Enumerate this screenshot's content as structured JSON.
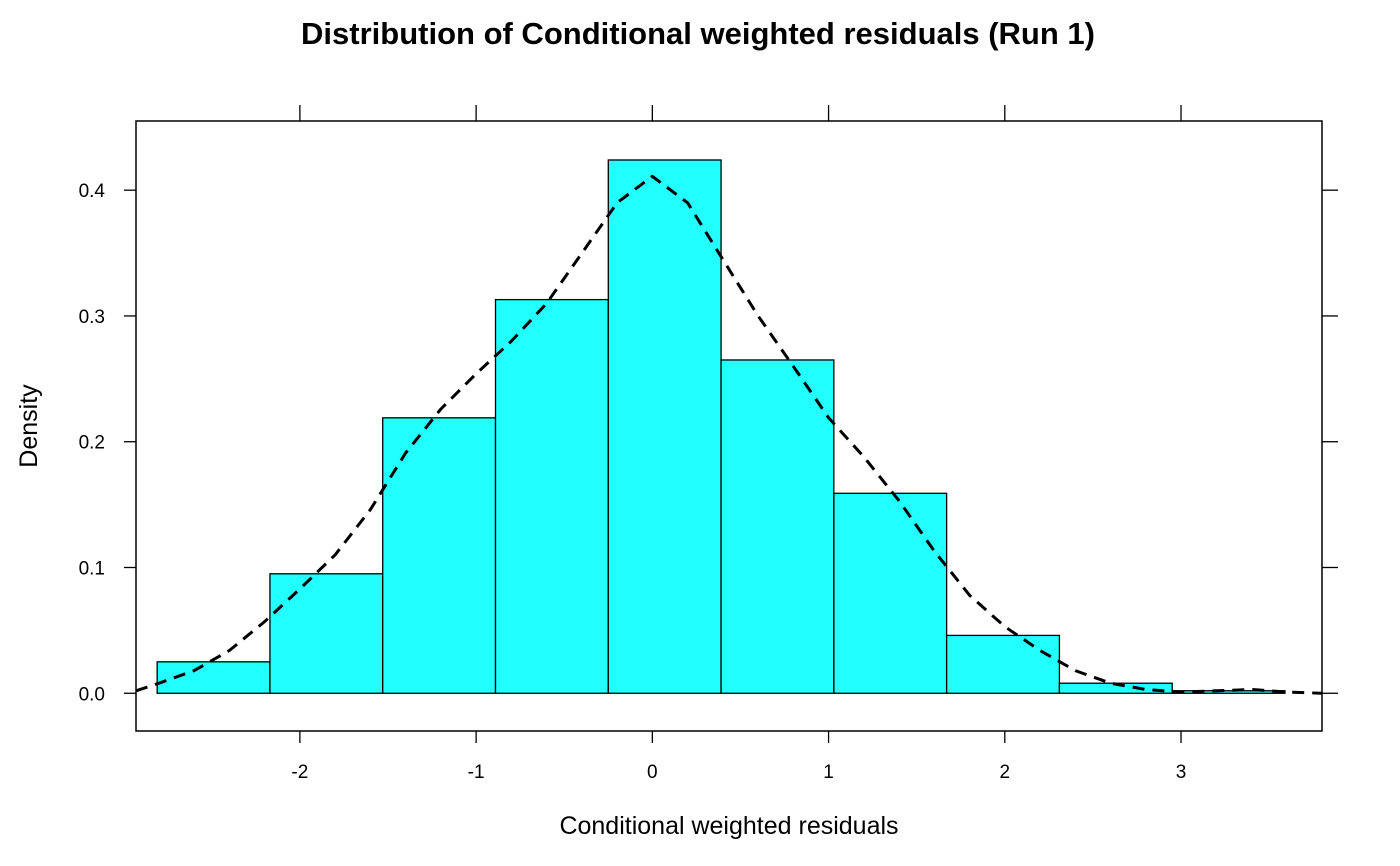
{
  "chart_data": {
    "type": "bar",
    "title": "Distribution of Conditional weighted residuals (Run 1)",
    "xlabel": "Conditional weighted residuals",
    "ylabel": "Density",
    "xlim": [
      -2.93,
      3.8
    ],
    "ylim": [
      -0.03,
      0.455
    ],
    "x_ticks": [
      -2,
      -1,
      0,
      1,
      2,
      3
    ],
    "x_tick_labels": [
      "-2",
      "-1",
      "0",
      "1",
      "2",
      "3"
    ],
    "y_ticks": [
      0.0,
      0.1,
      0.2,
      0.3,
      0.4
    ],
    "y_tick_labels": [
      "0.0",
      "0.1",
      "0.2",
      "0.3",
      "0.4"
    ],
    "bin_edges": [
      -2.81,
      -2.17,
      -1.53,
      -0.89,
      -0.25,
      0.39,
      1.03,
      1.67,
      2.31,
      2.95,
      3.59
    ],
    "values": [
      0.025,
      0.095,
      0.219,
      0.313,
      0.424,
      0.265,
      0.159,
      0.046,
      0.008,
      0.002
    ],
    "bar_color": "#22FFFF",
    "density_curve": {
      "style": "dashed",
      "color": "#000000",
      "x": [
        -2.93,
        -2.8,
        -2.6,
        -2.4,
        -2.2,
        -2.0,
        -1.8,
        -1.6,
        -1.4,
        -1.2,
        -1.0,
        -0.8,
        -0.6,
        -0.4,
        -0.2,
        0.0,
        0.2,
        0.4,
        0.6,
        0.8,
        1.0,
        1.2,
        1.4,
        1.6,
        1.8,
        2.0,
        2.2,
        2.4,
        2.6,
        2.8,
        3.0,
        3.2,
        3.4,
        3.6,
        3.8
      ],
      "y": [
        0.002,
        0.008,
        0.018,
        0.034,
        0.057,
        0.083,
        0.11,
        0.146,
        0.191,
        0.226,
        0.254,
        0.28,
        0.31,
        0.35,
        0.39,
        0.411,
        0.39,
        0.345,
        0.3,
        0.26,
        0.219,
        0.188,
        0.153,
        0.113,
        0.078,
        0.053,
        0.034,
        0.018,
        0.008,
        0.003,
        0.001,
        0.002,
        0.003,
        0.001,
        0.0
      ]
    }
  }
}
